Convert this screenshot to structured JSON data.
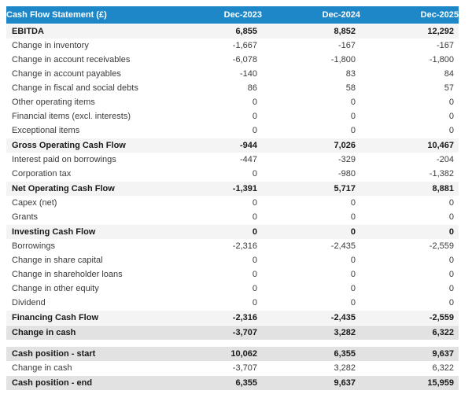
{
  "page": {
    "background": "#ffffff"
  },
  "table": {
    "title": "Cash Flow Statement (£)",
    "columns": [
      "Dec-2023",
      "Dec-2024",
      "Dec-2025"
    ],
    "colors": {
      "header_bg": "#1e87c8",
      "header_text": "#ffffff",
      "subtotal_row_bg": "#f4f4f4",
      "total_row_bg": "#e2e2e2",
      "text": "#3a3a3a",
      "bold_text": "#191919",
      "page_bg": "#ffffff"
    },
    "rows": [
      {
        "label": "EBITDA",
        "values": [
          "6,855",
          "8,852",
          "12,292"
        ],
        "style": "subtotal"
      },
      {
        "label": "Change in inventory",
        "values": [
          "-1,667",
          "-167",
          "-167"
        ],
        "style": "normal"
      },
      {
        "label": "Change in account receivables",
        "values": [
          "-6,078",
          "-1,800",
          "-1,800"
        ],
        "style": "normal"
      },
      {
        "label": "Change in account payables",
        "values": [
          "-140",
          "83",
          "84"
        ],
        "style": "normal"
      },
      {
        "label": "Change in fiscal and social debts",
        "values": [
          "86",
          "58",
          "57"
        ],
        "style": "normal"
      },
      {
        "label": "Other operating items",
        "values": [
          "0",
          "0",
          "0"
        ],
        "style": "normal"
      },
      {
        "label": "Financial items (excl. interests)",
        "values": [
          "0",
          "0",
          "0"
        ],
        "style": "normal"
      },
      {
        "label": "Exceptional items",
        "values": [
          "0",
          "0",
          "0"
        ],
        "style": "normal"
      },
      {
        "label": "Gross Operating Cash Flow",
        "values": [
          "-944",
          "7,026",
          "10,467"
        ],
        "style": "subtotal"
      },
      {
        "label": "Interest paid on borrowings",
        "values": [
          "-447",
          "-329",
          "-204"
        ],
        "style": "normal"
      },
      {
        "label": "Corporation tax",
        "values": [
          "0",
          "-980",
          "-1,382"
        ],
        "style": "normal"
      },
      {
        "label": "Net Operating Cash Flow",
        "values": [
          "-1,391",
          "5,717",
          "8,881"
        ],
        "style": "subtotal"
      },
      {
        "label": "Capex (net)",
        "values": [
          "0",
          "0",
          "0"
        ],
        "style": "normal"
      },
      {
        "label": "Grants",
        "values": [
          "0",
          "0",
          "0"
        ],
        "style": "normal"
      },
      {
        "label": "Investing Cash Flow",
        "values": [
          "0",
          "0",
          "0"
        ],
        "style": "subtotal"
      },
      {
        "label": "Borrowings",
        "values": [
          "-2,316",
          "-2,435",
          "-2,559"
        ],
        "style": "normal"
      },
      {
        "label": "Change in share capital",
        "values": [
          "0",
          "0",
          "0"
        ],
        "style": "normal"
      },
      {
        "label": "Change in shareholder loans",
        "values": [
          "0",
          "0",
          "0"
        ],
        "style": "normal"
      },
      {
        "label": "Change in other equity",
        "values": [
          "0",
          "0",
          "0"
        ],
        "style": "normal"
      },
      {
        "label": "Dividend",
        "values": [
          "0",
          "0",
          "0"
        ],
        "style": "normal"
      },
      {
        "label": "Financing Cash Flow",
        "values": [
          "-2,316",
          "-2,435",
          "-2,559"
        ],
        "style": "subtotal"
      },
      {
        "label": "Change in cash",
        "values": [
          "-3,707",
          "3,282",
          "6,322"
        ],
        "style": "total"
      },
      {
        "style": "spacer"
      },
      {
        "label": "Cash position - start",
        "values": [
          "10,062",
          "6,355",
          "9,637"
        ],
        "style": "total"
      },
      {
        "label": "Change in cash",
        "values": [
          "-3,707",
          "3,282",
          "6,322"
        ],
        "style": "normal"
      },
      {
        "label": "Cash position - end",
        "values": [
          "6,355",
          "9,637",
          "15,959"
        ],
        "style": "total"
      }
    ]
  }
}
